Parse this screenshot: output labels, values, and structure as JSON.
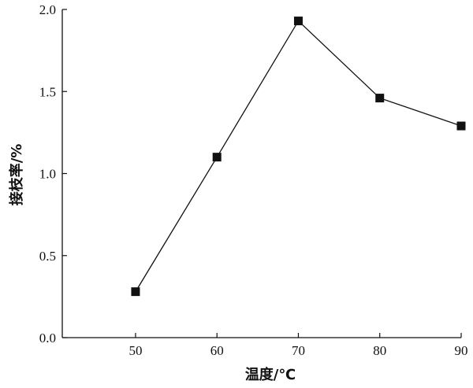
{
  "chart_data": {
    "type": "line",
    "x": [
      50,
      60,
      70,
      80,
      90
    ],
    "series": [
      {
        "values": [
          0.28,
          1.1,
          1.93,
          1.46,
          1.29
        ]
      }
    ],
    "xlabel": "温度/℃",
    "ylabel": "接枝率/%",
    "xticks": [
      50,
      60,
      70,
      80,
      90
    ],
    "yticks": [
      "0.0",
      "0.5",
      "1.0",
      "1.5",
      "2.0"
    ],
    "xlim": [
      41,
      90
    ],
    "ylim": [
      0,
      2.0
    ],
    "grid": false,
    "marker": "square",
    "colors": {
      "line": "#111111",
      "marker": "#111111"
    }
  }
}
